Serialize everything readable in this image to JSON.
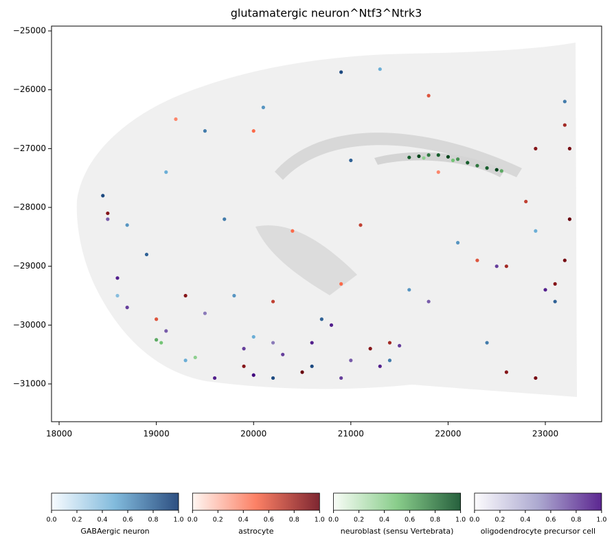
{
  "chart_data": {
    "type": "scatter",
    "title": "glutamatergic neuron^Ntf3^Ntrk3",
    "xlim": [
      17922,
      23579
    ],
    "ylim": [
      -31642,
      -24918
    ],
    "xticks": [
      18000,
      19000,
      20000,
      21000,
      22000,
      23000
    ],
    "yticks": [
      {
        "value": -25000,
        "label": "−25000"
      },
      {
        "value": -26000,
        "label": "−26000"
      },
      {
        "value": -27000,
        "label": "−27000"
      },
      {
        "value": -28000,
        "label": "−28000"
      },
      {
        "value": -29000,
        "label": "−29000"
      },
      {
        "value": -30000,
        "label": "−30000"
      },
      {
        "value": -31000,
        "label": "−31000"
      }
    ],
    "clim": [
      0,
      1
    ],
    "cticks": [
      {
        "value": 0,
        "label": "0.0"
      },
      {
        "value": 0.2,
        "label": "0.2"
      },
      {
        "value": 0.4,
        "label": "0.4"
      },
      {
        "value": 0.6,
        "label": "0.6"
      },
      {
        "value": 0.8,
        "label": "0.8"
      },
      {
        "value": 1,
        "label": "1.0"
      }
    ],
    "series": [
      {
        "name": "GABAergic neuron",
        "colormap": [
          "#f7fbff",
          "#6baed6",
          "#08306b"
        ],
        "x": [
          18450,
          18700,
          18900,
          19100,
          19500,
          20100,
          20900,
          21300,
          20600,
          20700,
          21400,
          20000,
          19800,
          22400,
          23100,
          22900,
          21600,
          19700,
          22100,
          18600,
          21000,
          23200,
          20200,
          19300
        ],
        "y": [
          -27800,
          -28300,
          -28800,
          -27400,
          -26700,
          -26300,
          -25700,
          -25650,
          -30700,
          -29900,
          -30600,
          -30200,
          -29500,
          -30300,
          -29600,
          -28400,
          -29400,
          -28200,
          -28600,
          -29500,
          -27200,
          -26200,
          -30900,
          -30600
        ],
        "values": [
          0.9,
          0.6,
          0.8,
          0.5,
          0.7,
          0.6,
          0.9,
          0.5,
          0.9,
          0.8,
          0.7,
          0.5,
          0.6,
          0.7,
          0.8,
          0.5,
          0.6,
          0.7,
          0.6,
          0.4,
          0.8,
          0.7,
          0.9,
          0.5
        ]
      },
      {
        "name": "astrocyte",
        "colormap": [
          "#fff5f0",
          "#fb6a4a",
          "#67000d"
        ],
        "x": [
          23250,
          23200,
          23100,
          23250,
          22900,
          23200,
          22800,
          22600,
          19000,
          19300,
          18500,
          20200,
          20500,
          21200,
          21400,
          20400,
          21900,
          22300,
          20000,
          19200,
          21800,
          22600,
          22900,
          21100,
          20900,
          19900
        ],
        "y": [
          -28200,
          -28900,
          -29300,
          -27000,
          -27000,
          -26600,
          -27900,
          -29000,
          -29900,
          -29500,
          -28100,
          -29600,
          -30800,
          -30400,
          -30300,
          -28400,
          -27400,
          -28900,
          -26700,
          -26500,
          -26100,
          -30800,
          -30900,
          -28300,
          -29300,
          -30700
        ],
        "values": [
          1.0,
          0.95,
          0.9,
          0.95,
          0.9,
          0.8,
          0.7,
          0.8,
          0.6,
          0.9,
          0.9,
          0.7,
          1.0,
          0.9,
          0.8,
          0.5,
          0.4,
          0.6,
          0.5,
          0.4,
          0.6,
          0.9,
          0.95,
          0.7,
          0.5,
          0.9
        ]
      },
      {
        "name": "neuroblast (sensu Vertebrata)",
        "colormap": [
          "#f7fcf5",
          "#74c476",
          "#00441b"
        ],
        "x": [
          21600,
          21700,
          21800,
          21900,
          22000,
          22100,
          22200,
          22300,
          22400,
          22500,
          22550,
          21750,
          22050,
          19000,
          19050,
          19400
        ],
        "y": [
          -27150,
          -27130,
          -27110,
          -27110,
          -27140,
          -27180,
          -27240,
          -27290,
          -27330,
          -27360,
          -27380,
          -27160,
          -27200,
          -30250,
          -30300,
          -30550
        ],
        "values": [
          0.9,
          1.0,
          0.8,
          0.9,
          1.0,
          0.7,
          0.9,
          0.8,
          0.9,
          1.0,
          0.6,
          0.4,
          0.5,
          0.6,
          0.5,
          0.4
        ]
      },
      {
        "name": "oligodendrocyte precursor cell",
        "colormap": [
          "#fcfbfd",
          "#9e9ac8",
          "#3f007d"
        ],
        "x": [
          18600,
          18700,
          19100,
          19600,
          20000,
          20300,
          20800,
          21000,
          21300,
          21500,
          20600,
          19500,
          22500,
          21800,
          23000,
          20200,
          19900,
          18500,
          20900
        ],
        "y": [
          -29200,
          -29700,
          -30100,
          -30900,
          -30850,
          -30500,
          -30000,
          -30600,
          -30700,
          -30350,
          -30300,
          -29800,
          -29000,
          -29600,
          -29400,
          -30300,
          -30400,
          -28200,
          -30900
        ],
        "values": [
          0.9,
          0.8,
          0.7,
          0.9,
          1.0,
          0.8,
          0.9,
          0.7,
          0.9,
          0.8,
          0.9,
          0.6,
          0.8,
          0.7,
          0.9,
          0.6,
          0.8,
          0.7,
          0.8
        ]
      }
    ]
  }
}
